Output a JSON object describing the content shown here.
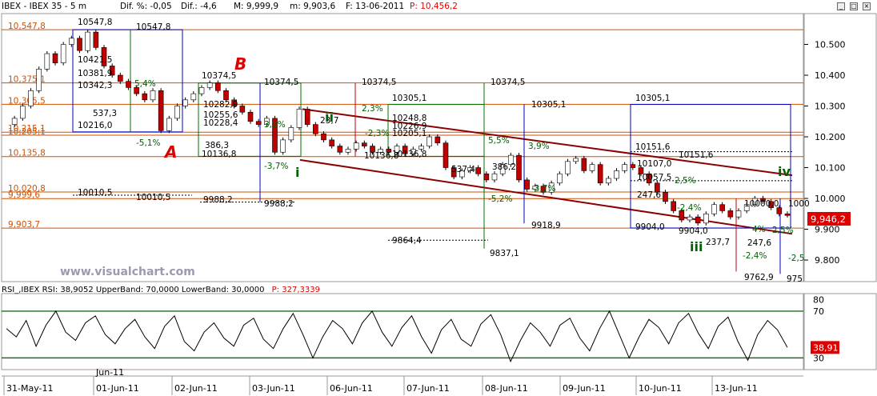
{
  "title": {
    "symbol": "IBEX - IBEX 35 - 5 m",
    "dif_pct_label": "Dif. %: -0,05",
    "dif_label": "Dif.: -4,6",
    "max_label": "M: 9,999,9",
    "min_label": "m: 9,903,6",
    "date_label": "F: 13-06-2011",
    "price_label": "P: 10,456,2"
  },
  "window_buttons": [
    "minimize",
    "maximize",
    "close"
  ],
  "watermark": "www.visualchart.com",
  "chart_data": [
    {
      "type": "line",
      "title": "IBEX - IBEX 35 - 5 m",
      "ylim": [
        9730,
        10600
      ],
      "y_ticks": [
        "10.500",
        "10.400",
        "10.300",
        "10.200",
        "10.100",
        "10.000",
        "9.900",
        "9.800"
      ],
      "x_ticks": [
        "31-May-11",
        "01-Jun-11",
        "02-Jun-11",
        "03-Jun-11",
        "06-Jun-11",
        "07-Jun-11",
        "08-Jun-11",
        "09-Jun-11",
        "10-Jun-11",
        "13-Jun-11"
      ],
      "current_price": "9,946,2",
      "series": [
        {
          "values": [
            10240,
            10260,
            10300,
            10350,
            10420,
            10470,
            10440,
            10500,
            10520,
            10480,
            10540,
            10490,
            10430,
            10400,
            10380,
            10360,
            10340,
            10320,
            10350,
            10220,
            10260,
            10300,
            10320,
            10340,
            10360,
            10375,
            10350,
            10320,
            10300,
            10280,
            10250,
            10240,
            10260,
            10150,
            10190,
            10230,
            10290,
            10240,
            10210,
            10190,
            10170,
            10150,
            10160,
            10180,
            10170,
            10150,
            10160,
            10150,
            10170,
            10145,
            10160,
            10170,
            10200,
            10180,
            10100,
            10070,
            10090,
            10100,
            10080,
            10060,
            10080,
            10110,
            10140,
            10060,
            10030,
            10040,
            10020,
            10050,
            10080,
            10120,
            10130,
            10090,
            10110,
            10050,
            10065,
            10090,
            10110,
            10100,
            10080,
            10050,
            10020,
            9990,
            9960,
            9930,
            9940,
            9920,
            9950,
            9980,
            9960,
            9940,
            9960,
            9980,
            10000,
            9990,
            9970,
            9950,
            9946
          ]
        }
      ],
      "horizontal_levels": [
        {
          "value": 10547.8,
          "label": "10,547,8",
          "color": "#d05000"
        },
        {
          "value": 10375.1,
          "label": "10,375,1",
          "color": "#d05000"
        },
        {
          "value": 10305.5,
          "label": "10,305,5",
          "color": "#d05000"
        },
        {
          "value": 10215.1,
          "label": "10,215,1",
          "color": "#d05000"
        },
        {
          "value": 10205.1,
          "label": "10,205,1",
          "color": "#d05000"
        },
        {
          "value": 10135.8,
          "label": "10,135,8",
          "color": "#d05000"
        },
        {
          "value": 10020.8,
          "label": "10,020,8",
          "color": "#d05000"
        },
        {
          "value": 9999.6,
          "label": "9,999,6",
          "color": "#d05000"
        },
        {
          "value": 9903.7,
          "label": "9,903,7",
          "color": "#d05000"
        }
      ],
      "wave_labels": [
        {
          "text": "B",
          "color": "#e00000"
        },
        {
          "text": "A",
          "color": "#e00000"
        },
        {
          "text": "i",
          "color": "#006000"
        },
        {
          "text": "ii",
          "color": "#006000"
        },
        {
          "text": "iii",
          "color": "#006000"
        },
        {
          "text": "iv",
          "color": "#006000"
        }
      ],
      "annotations": [
        "10547,8",
        "10547,8",
        "10421,5",
        "10381,9",
        "10342,3",
        "5,4%",
        "537,3",
        "10216,0",
        "-5,1%",
        "10374,5",
        "10374,5",
        "10282,9",
        "10255,6",
        "10228,4",
        "3,9%",
        "386,3",
        "10136,8",
        "-3,7%",
        "10010,5",
        "10010,5",
        "9988,2",
        "9988,2",
        "10374,5",
        "2,3%",
        "23,7",
        "-2,3%",
        "10136,8",
        "10305,1",
        "10248,8",
        "10226,9",
        "10205,1",
        "10136,8",
        "10374,5",
        "5,5%",
        "537,4",
        "9837,1",
        "9864,4",
        "10305,1",
        "3,9%",
        "386,2",
        "-3,7%",
        "9918,9",
        "-5,2%",
        "10305,1",
        "10151,6",
        "10151,6",
        "10107,0",
        "10057,5",
        "2,5%",
        "247,6",
        "-2,4%",
        "9904,0",
        "9904,0",
        "237,7",
        "10000,0",
        "4%",
        "247,6",
        "-2,4%",
        "9762,9",
        "2,5%",
        "-2,5",
        "975",
        "1000"
      ]
    },
    {
      "type": "line",
      "title": "RSI_,IBEX RSI: 38,9052 UpperBand: 70,0000 LowerBand: 30,0000",
      "rsi_value_label": "38,9052",
      "upper_band": 70,
      "lower_band": 30,
      "ylim": [
        20,
        85
      ],
      "y_ticks": [
        "80",
        "70",
        "30"
      ],
      "current_value": "38,91",
      "series": [
        {
          "values": [
            55,
            48,
            62,
            40,
            58,
            70,
            52,
            45,
            60,
            66,
            50,
            42,
            55,
            63,
            48,
            38,
            57,
            66,
            44,
            36,
            52,
            60,
            47,
            40,
            58,
            64,
            46,
            38,
            55,
            68,
            50,
            30,
            48,
            62,
            55,
            42,
            60,
            70,
            52,
            40,
            56,
            66,
            48,
            34,
            54,
            63,
            46,
            40,
            59,
            67,
            50,
            27,
            45,
            60,
            52,
            40,
            58,
            64,
            47,
            36,
            55,
            70,
            50,
            30,
            48,
            63,
            56,
            42,
            60,
            68,
            51,
            38,
            57,
            65,
            44,
            28,
            50,
            62,
            54,
            39
          ]
        }
      ]
    }
  ],
  "price_panel_bottom_date": "Jun-11",
  "rsi_title_label": "RSI_,IBEX RSI: 38,9052 UpperBand: 70,0000 LowerBand: 30,0000",
  "rsi_price_label": "P: 327,3339",
  "colors": {
    "level_line": "#d05000",
    "channel": "#8b0000",
    "candle_up": "#ffffff",
    "candle_down": "#c00000",
    "blue_box": "#0000c0",
    "green_box": "#007000",
    "red_marker": "#c00000",
    "rsi_line": "#000000",
    "rsi_band": "#1e6e1e",
    "price_badge": "#e00000"
  }
}
